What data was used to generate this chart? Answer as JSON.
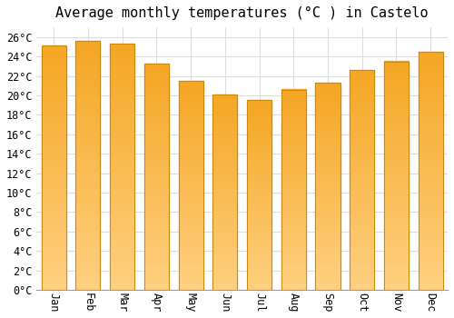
{
  "title": "Average monthly temperatures (°C ) in Castelo",
  "months": [
    "Jan",
    "Feb",
    "Mar",
    "Apr",
    "May",
    "Jun",
    "Jul",
    "Aug",
    "Sep",
    "Oct",
    "Nov",
    "Dec"
  ],
  "values": [
    25.1,
    25.6,
    25.3,
    23.3,
    21.5,
    20.1,
    19.5,
    20.6,
    21.3,
    22.6,
    23.5,
    24.5
  ],
  "bar_color_top": "#F5A623",
  "bar_color_bottom": "#FFD080",
  "bar_edge_color": "#C8870A",
  "ylim": [
    0,
    27
  ],
  "ytick_step": 2,
  "background_color": "#FFFFFF",
  "grid_color": "#DDDDDD",
  "title_fontsize": 11,
  "tick_fontsize": 8.5,
  "bar_width": 0.72
}
